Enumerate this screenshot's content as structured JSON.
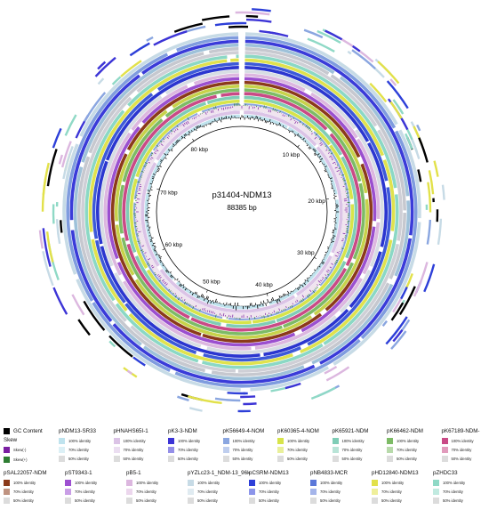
{
  "map": {
    "reference_name": "p31404-NDM13",
    "reference_length": "88385 bp",
    "ticks": [
      "10 kbp",
      "20 kbp",
      "30 kbp",
      "40 kbp",
      "50 kbp",
      "60 kbp",
      "70 kbp",
      "80 kbp"
    ]
  },
  "legend": {
    "gc_label": "GC Content",
    "skew_header": "Skew",
    "skew_neg": "Skew(-)",
    "skew_pos": "Skew(+)",
    "gc_color": "#000000",
    "skew_neg_color": "#7b1fa2",
    "skew_pos_color": "#2e7d32",
    "identity_labels": [
      "100% identity",
      "70% identity",
      "50% identity"
    ],
    "rings": [
      {
        "name": "pNDM13-SR33",
        "color": "#bfe3ee"
      },
      {
        "name": "pHNAHS65I-1",
        "color": "#dbc3e6"
      },
      {
        "name": "pK3-3-NDM",
        "color": "#3c34d6"
      },
      {
        "name": "pK56649-4-NOM",
        "color": "#8aa6e0"
      },
      {
        "name": "pK60365-4-NOM",
        "color": "#d7e44a"
      },
      {
        "name": "pK65921-NDM",
        "color": "#7fcdb6"
      },
      {
        "name": "pK66462-NDM",
        "color": "#7dbb66"
      },
      {
        "name": "pK67189-NDM-",
        "color": "#c94a86"
      },
      {
        "name": "pSAL22057-NDM",
        "color": "#8b3a1a"
      },
      {
        "name": "pST9343-1",
        "color": "#9d4fd1"
      },
      {
        "name": "pB5-1",
        "color": "#dcb7df"
      },
      {
        "name": "pYZLc23-1_NDM-13_96k",
        "color": "#c7dbe6"
      },
      {
        "name": "pCSRM-NDM13",
        "color": "#2d3fd8"
      },
      {
        "name": "pNB4833-MCR",
        "color": "#5b78d9"
      },
      {
        "name": "pHD12840-NDM13",
        "color": "#e2e14a"
      },
      {
        "name": "pZHDC33",
        "color": "#8fd9c6"
      }
    ]
  }
}
